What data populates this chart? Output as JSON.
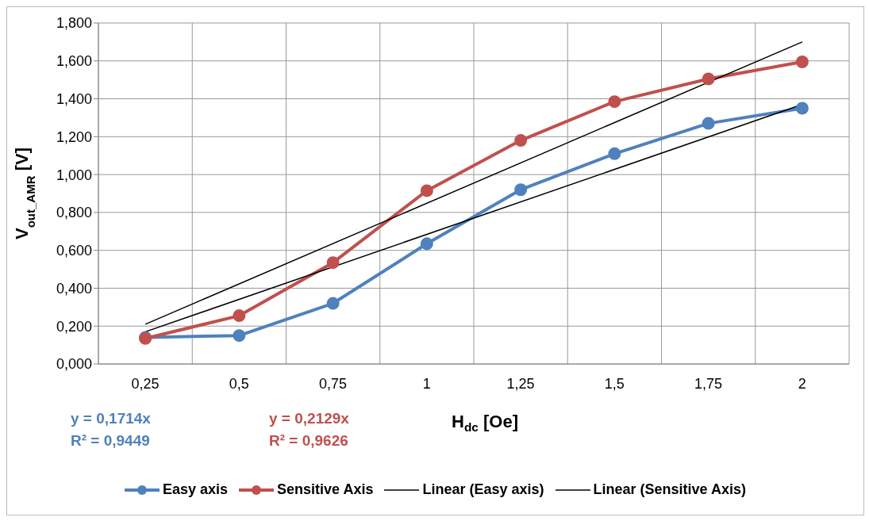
{
  "chart_data": {
    "type": "line",
    "xlabel": "H$_{dc}$ [Oe]",
    "ylabel": "V$_{out_AMR}$ [V]",
    "categories": [
      "0,25",
      "0,5",
      "0,75",
      "1",
      "1,25",
      "1,5",
      "1,75",
      "2"
    ],
    "series": [
      {
        "name": "Easy axis",
        "color": "#4f81bd",
        "values": [
          0.14,
          0.15,
          0.32,
          0.635,
          0.92,
          1.11,
          1.27,
          1.35
        ],
        "marker": "circle"
      },
      {
        "name": "Sensitive Axis",
        "color": "#c0504d",
        "values": [
          0.135,
          0.255,
          0.535,
          0.915,
          1.18,
          1.385,
          1.505,
          1.595
        ],
        "marker": "circle"
      },
      {
        "name": "Linear (Easy axis)",
        "color": "#000000",
        "values": [
          0.17,
          null,
          null,
          null,
          null,
          null,
          null,
          1.37
        ],
        "marker": "none"
      },
      {
        "name": "Linear (Sensitive Axis)",
        "color": "#000000",
        "values": [
          0.21,
          null,
          null,
          null,
          null,
          null,
          null,
          1.7
        ],
        "marker": "none"
      }
    ],
    "ylim": [
      0,
      1.8
    ],
    "yticks": [
      {
        "value": 0,
        "label": "0,000"
      },
      {
        "value": 0.2,
        "label": "0,200"
      },
      {
        "value": 0.4,
        "label": "0,400"
      },
      {
        "value": 0.6,
        "label": "0,600"
      },
      {
        "value": 0.8,
        "label": "0,800"
      },
      {
        "value": 1,
        "label": "1,000"
      },
      {
        "value": 1.2,
        "label": "1,200"
      },
      {
        "value": 1.4,
        "label": "1,400"
      },
      {
        "value": 1.6,
        "label": "1,600"
      },
      {
        "value": 1.8,
        "label": "1,800"
      }
    ],
    "grid": true,
    "legend": "bottom",
    "line_style": "solid",
    "annotations": [
      "y = 0,1714x\nR² = 0,9449",
      "y = 0,2129x\nR² = 0,9626"
    ]
  }
}
